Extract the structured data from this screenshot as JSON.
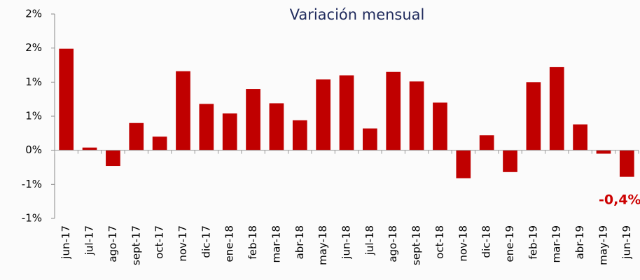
{
  "chart_data": {
    "type": "bar",
    "title": "Variación mensual",
    "categories": [
      "jun-17",
      "jul-17",
      "ago-17",
      "sept-17",
      "oct-17",
      "nov-17",
      "dic-17",
      "ene-18",
      "feb-18",
      "mar-18",
      "abr-18",
      "may-18",
      "jun-18",
      "jul-18",
      "ago-18",
      "sept-18",
      "oct-18",
      "nov-18",
      "dic-18",
      "ene-19",
      "feb-19",
      "mar-19",
      "abr-19",
      "may-19",
      "jun-19"
    ],
    "values": [
      1.49,
      0.04,
      -0.23,
      0.4,
      0.2,
      1.16,
      0.68,
      0.54,
      0.9,
      0.69,
      0.44,
      1.04,
      1.1,
      0.32,
      1.15,
      1.01,
      0.7,
      -0.41,
      0.22,
      -0.32,
      1.0,
      1.22,
      0.38,
      -0.05,
      -0.39
    ],
    "color": "#c00000",
    "ylim": [
      -1,
      2
    ],
    "yticks": [
      {
        "value": -1,
        "label": "-1%"
      },
      {
        "value": -0.5,
        "label": "-1%"
      },
      {
        "value": 0,
        "label": "0%"
      },
      {
        "value": 0.5,
        "label": "1%"
      },
      {
        "value": 1,
        "label": "1%"
      },
      {
        "value": 1.5,
        "label": "2%"
      },
      {
        "value": 2,
        "label": "2%"
      }
    ],
    "annotations": [
      {
        "text": "-0,4%",
        "category": 24
      }
    ]
  }
}
